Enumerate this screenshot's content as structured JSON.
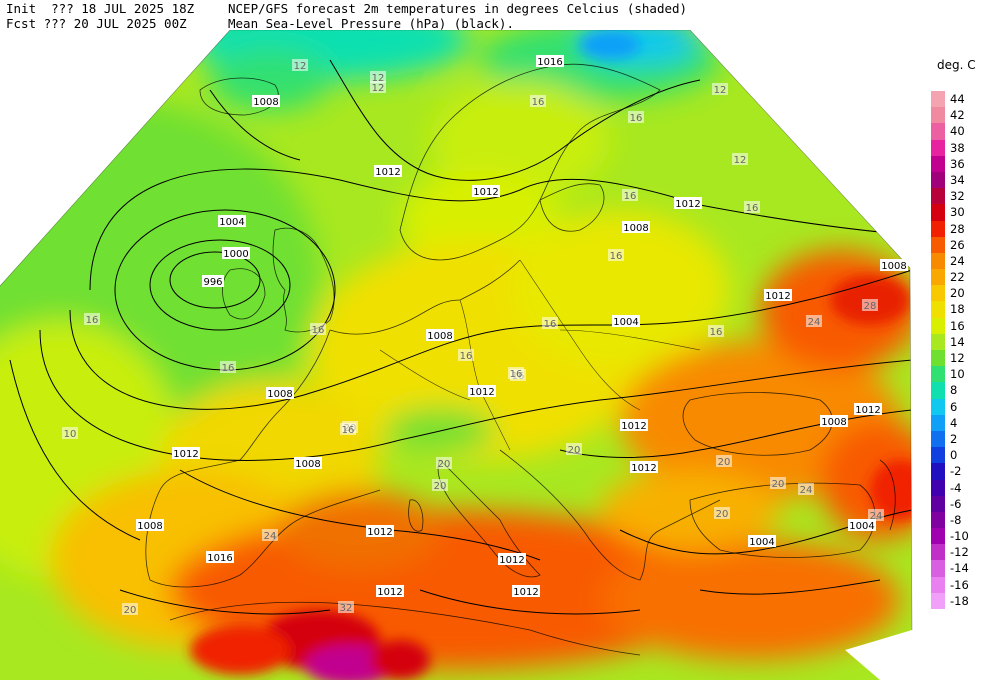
{
  "header": {
    "init_line": "Init  ??? 18 JUL 2025 18Z",
    "fcst_line": "Fcst ??? 20 JUL 2025 00Z",
    "title_line1": "NCEP/GFS forecast 2m temperatures in degrees Celcius (shaded)",
    "title_line2": "Mean Sea-Level Pressure (hPa) (black)."
  },
  "legend": {
    "unit": "deg. C",
    "entries": [
      {
        "label": "44",
        "color": "#f4a3b0"
      },
      {
        "label": "42",
        "color": "#f08aa0"
      },
      {
        "label": "40",
        "color": "#ec5fa0"
      },
      {
        "label": "38",
        "color": "#e8239f"
      },
      {
        "label": "36",
        "color": "#c2008f"
      },
      {
        "label": "34",
        "color": "#a0007a"
      },
      {
        "label": "32",
        "color": "#b8003a"
      },
      {
        "label": "30",
        "color": "#d40010"
      },
      {
        "label": "28",
        "color": "#f02000"
      },
      {
        "label": "26",
        "color": "#f85a00"
      },
      {
        "label": "24",
        "color": "#f88a00"
      },
      {
        "label": "22",
        "color": "#f8a800"
      },
      {
        "label": "20",
        "color": "#f8c800"
      },
      {
        "label": "18",
        "color": "#f0e000"
      },
      {
        "label": "16",
        "color": "#d8f000"
      },
      {
        "label": "14",
        "color": "#a8e820"
      },
      {
        "label": "12",
        "color": "#70e030"
      },
      {
        "label": "10",
        "color": "#30e070"
      },
      {
        "label": "8",
        "color": "#10e0b0"
      },
      {
        "label": "6",
        "color": "#10c8f0"
      },
      {
        "label": "4",
        "color": "#10a0f8"
      },
      {
        "label": "2",
        "color": "#1070f0"
      },
      {
        "label": "0",
        "color": "#1040e0"
      },
      {
        "label": "-2",
        "color": "#2010c0"
      },
      {
        "label": "-4",
        "color": "#4000b0"
      },
      {
        "label": "-6",
        "color": "#6000a0"
      },
      {
        "label": "-8",
        "color": "#8000a0"
      },
      {
        "label": "-10",
        "color": "#a000b0"
      },
      {
        "label": "-12",
        "color": "#c030c8"
      },
      {
        "label": "-14",
        "color": "#d860e0"
      },
      {
        "label": "-16",
        "color": "#e880f0"
      },
      {
        "label": "-18",
        "color": "#f0a0f8"
      }
    ]
  },
  "map": {
    "isobar_labels": [
      "1016",
      "1008",
      "1012",
      "1004",
      "1000",
      "996",
      "1008",
      "1012",
      "1012",
      "1008",
      "1004",
      "1012",
      "1008",
      "1012",
      "1012",
      "1008",
      "1008",
      "1016",
      "1012",
      "1012",
      "1008",
      "1012",
      "1004",
      "1012",
      "1008",
      "1004",
      "1012",
      "1012",
      "1012",
      "1012"
    ],
    "temp_labels": [
      "12",
      "12",
      "12",
      "16",
      "16",
      "12",
      "16",
      "16",
      "16",
      "16",
      "16",
      "16",
      "16",
      "16",
      "16",
      "10",
      "16",
      "20",
      "20",
      "24",
      "20",
      "24",
      "28",
      "24",
      "20",
      "20",
      "20",
      "24",
      "20",
      "32",
      "20",
      "12",
      "16",
      "16"
    ]
  }
}
